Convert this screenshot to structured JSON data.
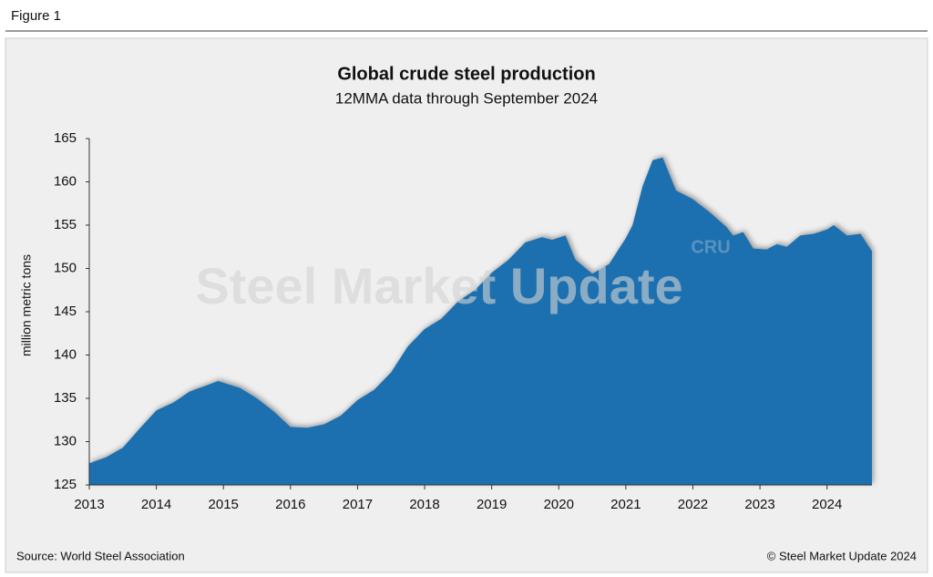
{
  "figure_label": "Figure 1",
  "chart_data": {
    "type": "area",
    "title": "Global crude steel production",
    "subtitle": "12MMA data through September 2024",
    "y_label": "million metric tons",
    "source": "Source: World Steel Association",
    "copyright": "© Steel Market Update 2024",
    "watermark": "Steel Market Update",
    "watermark_logo": "CRU",
    "color": "#1a70af",
    "x": [
      2013.0,
      2013.25,
      2013.5,
      2013.75,
      2014.0,
      2014.25,
      2014.5,
      2014.75,
      2014.92,
      2015.25,
      2015.5,
      2015.75,
      2016.0,
      2016.25,
      2016.5,
      2016.75,
      2017.0,
      2017.25,
      2017.5,
      2017.75,
      2018.0,
      2018.25,
      2018.5,
      2018.75,
      2019.0,
      2019.25,
      2019.5,
      2019.75,
      2019.9,
      2020.1,
      2020.25,
      2020.5,
      2020.75,
      2021.0,
      2021.1,
      2021.25,
      2021.4,
      2021.55,
      2021.75,
      2022.0,
      2022.25,
      2022.5,
      2022.6,
      2022.75,
      2022.9,
      2023.1,
      2023.25,
      2023.4,
      2023.6,
      2023.8,
      2024.0,
      2024.1,
      2024.3,
      2024.5,
      2024.67
    ],
    "values": [
      127.5,
      128.2,
      129.3,
      131.5,
      133.6,
      134.5,
      135.8,
      136.5,
      137.0,
      136.2,
      135.0,
      133.5,
      131.7,
      131.6,
      132.0,
      133.0,
      134.8,
      136.0,
      138.0,
      141.0,
      143.0,
      144.2,
      146.2,
      147.5,
      149.5,
      151.0,
      153.0,
      153.6,
      153.3,
      153.8,
      151.0,
      149.4,
      150.5,
      153.5,
      155.0,
      159.5,
      162.5,
      162.8,
      159.0,
      158.0,
      156.5,
      154.8,
      153.8,
      154.2,
      152.3,
      152.2,
      152.8,
      152.5,
      153.8,
      154.0,
      154.5,
      155.0,
      153.8,
      154.0,
      152.0
    ],
    "xlim": [
      2013,
      2024.67
    ],
    "xticks": [
      2013,
      2014,
      2015,
      2016,
      2017,
      2018,
      2019,
      2020,
      2021,
      2022,
      2023,
      2024
    ],
    "ylim": [
      125,
      165
    ],
    "yticks": [
      125,
      130,
      135,
      140,
      145,
      150,
      155,
      160,
      165
    ]
  }
}
